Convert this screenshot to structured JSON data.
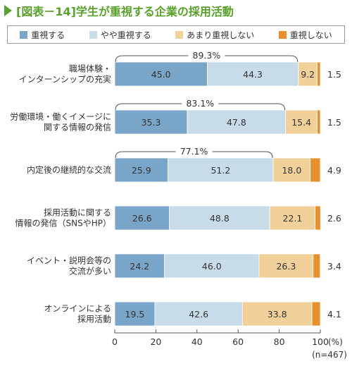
{
  "figure_title": "[図表－14]学生が重視する企業の採用活動",
  "legend": [
    {
      "label": "重視する",
      "color": "#79a6c8"
    },
    {
      "label": "やや重視する",
      "color": "#c7dbe8"
    },
    {
      "label": "あまり重視しない",
      "color": "#f2d09a"
    },
    {
      "label": "重視しない",
      "color": "#e8902e"
    }
  ],
  "chart_data": {
    "type": "bar",
    "orientation": "horizontal",
    "stacked": true,
    "categories": [
      [
        "職場体験・",
        "インターンシップの充実"
      ],
      [
        "労働環境・働くイメージに",
        "関する情報の発信"
      ],
      [
        "内定後の継続的な交流"
      ],
      [
        "採用活動に関する",
        "情報の発信（SNSやHP）"
      ],
      [
        "イベント・説明会等の",
        "交流が多い"
      ],
      [
        "オンラインによる",
        "採用活動"
      ]
    ],
    "series": [
      {
        "name": "重視する",
        "values": [
          45.0,
          35.3,
          25.9,
          26.6,
          24.2,
          19.5
        ]
      },
      {
        "name": "やや重視する",
        "values": [
          44.3,
          47.8,
          51.2,
          48.8,
          46.0,
          42.6
        ]
      },
      {
        "name": "あまり重視しない",
        "values": [
          9.2,
          15.4,
          18.0,
          22.1,
          26.3,
          33.8
        ]
      },
      {
        "name": "重視しない",
        "values": [
          1.5,
          1.5,
          4.9,
          2.6,
          3.4,
          4.1
        ]
      }
    ],
    "annotations": [
      "89.3%",
      "83.1%",
      "77.1%",
      null,
      null,
      null
    ],
    "xlim": [
      0,
      100
    ],
    "xticks": [
      0,
      20,
      40,
      60,
      80,
      100
    ],
    "xunit": "(%)",
    "n_note": "(n=467)",
    "legend_position": "top",
    "grid": false
  }
}
